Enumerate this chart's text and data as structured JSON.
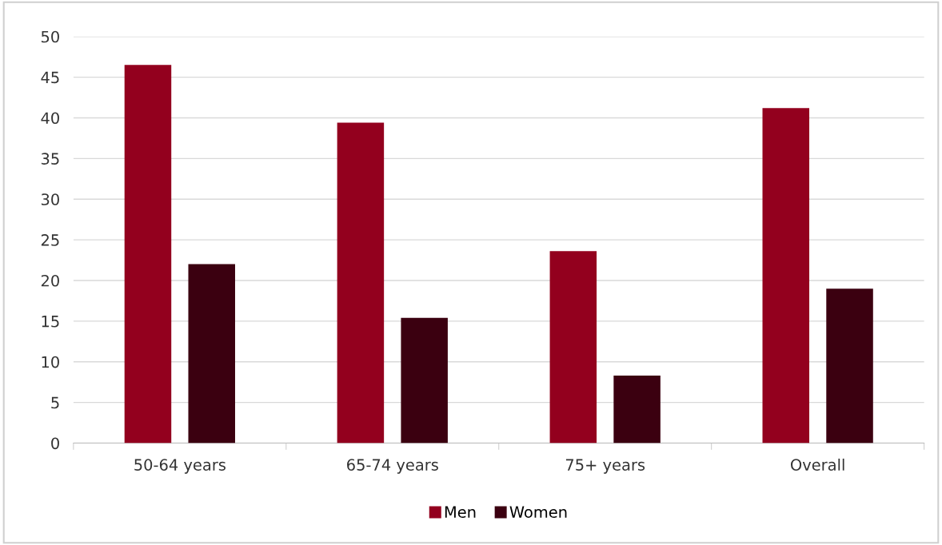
{
  "chart_data": {
    "type": "bar",
    "categories": [
      "50-64 years",
      "65-74 years",
      "75+ years",
      "Overall"
    ],
    "series": [
      {
        "name": "Men",
        "color": "#93001e",
        "values": [
          46.5,
          39.4,
          23.6,
          41.2
        ]
      },
      {
        "name": "Women",
        "color": "#3b0010",
        "values": [
          22.0,
          15.4,
          8.3,
          19.0
        ]
      }
    ],
    "ylim": [
      0,
      50
    ],
    "yticks": [
      0,
      5,
      10,
      15,
      20,
      25,
      30,
      35,
      40,
      45,
      50
    ],
    "grid": "y",
    "legend": "bottom"
  }
}
